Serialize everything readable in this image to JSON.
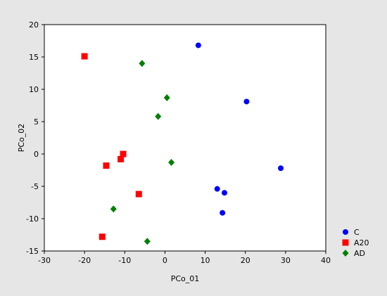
{
  "chart_data": {
    "type": "scatter",
    "title": "",
    "xlabel": "PCo_01",
    "ylabel": "PCo_02",
    "xlim": [
      -30,
      40
    ],
    "ylim": [
      -15,
      20
    ],
    "xticks": [
      -30,
      -20,
      -10,
      0,
      10,
      20,
      30,
      40
    ],
    "yticks": [
      -15,
      -10,
      -5,
      0,
      5,
      10,
      15,
      20
    ],
    "grid": false,
    "legend_position": "bottom-right",
    "series": [
      {
        "name": "C",
        "color": "#0000ff",
        "marker": "circle",
        "points": [
          {
            "x": 8.3,
            "y": 16.8
          },
          {
            "x": 20.3,
            "y": 8.1
          },
          {
            "x": 28.8,
            "y": -2.2
          },
          {
            "x": 13.0,
            "y": -5.4
          },
          {
            "x": 14.8,
            "y": -6.0
          },
          {
            "x": 14.3,
            "y": -9.1
          }
        ]
      },
      {
        "name": "A20",
        "color": "#ff0000",
        "marker": "square",
        "points": [
          {
            "x": -20.0,
            "y": 15.1
          },
          {
            "x": -10.4,
            "y": 0.0
          },
          {
            "x": -11.0,
            "y": -0.8
          },
          {
            "x": -14.6,
            "y": -1.8
          },
          {
            "x": -6.5,
            "y": -6.2
          },
          {
            "x": -15.6,
            "y": -12.8
          }
        ]
      },
      {
        "name": "AD",
        "color": "#008000",
        "marker": "diamond",
        "points": [
          {
            "x": -5.7,
            "y": 14.0
          },
          {
            "x": 0.5,
            "y": 8.7
          },
          {
            "x": -1.7,
            "y": 5.8
          },
          {
            "x": 1.6,
            "y": -1.3
          },
          {
            "x": -12.8,
            "y": -8.5
          },
          {
            "x": -4.4,
            "y": -13.5
          }
        ]
      }
    ]
  }
}
